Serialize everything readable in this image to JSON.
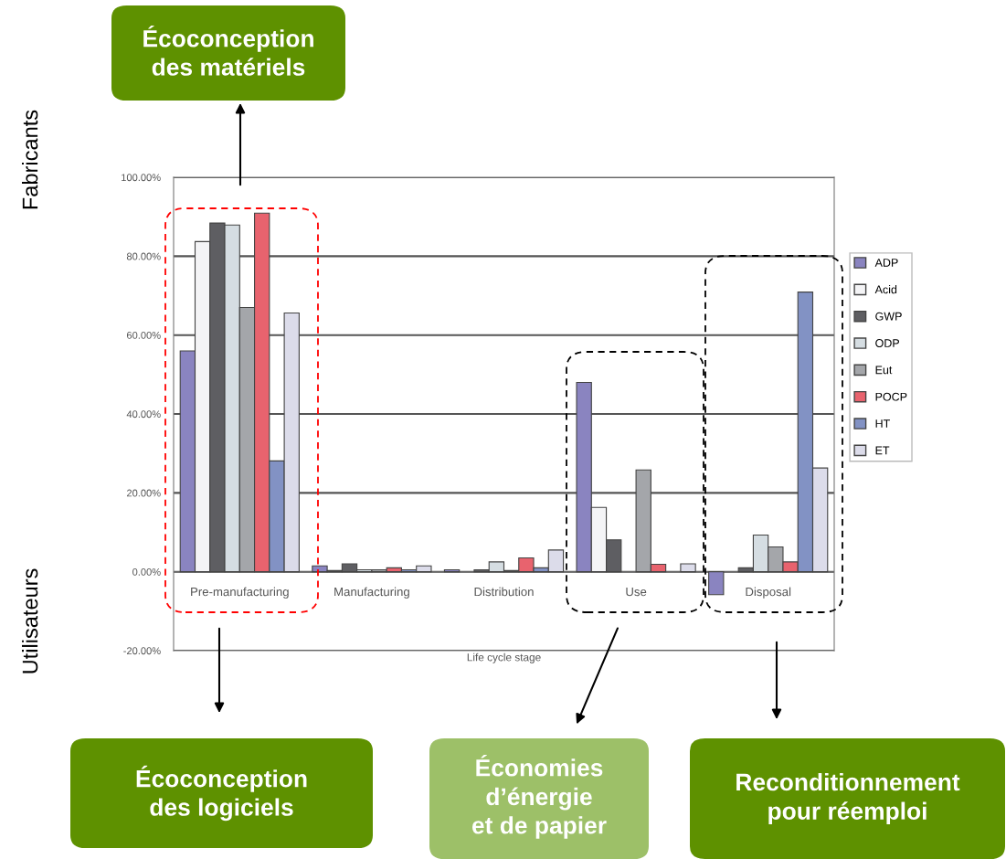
{
  "chart_data": {
    "type": "bar",
    "xlabel": "Life cycle stage",
    "categories": [
      "Pre-manufacturing",
      "Manufacturing",
      "Distribution",
      "Use",
      "Disposal"
    ],
    "series": [
      {
        "name": "ADP",
        "color": "#8a84c0",
        "values": [
          56,
          1.5,
          0.5,
          48,
          -5.8
        ]
      },
      {
        "name": "Acid",
        "color": "#f4f4f6",
        "values": [
          83.7,
          0.3,
          null,
          16.3,
          null
        ]
      },
      {
        "name": "GWP",
        "color": "#5e5e62",
        "values": [
          88.4,
          2,
          0.5,
          8.1,
          1
        ]
      },
      {
        "name": "ODP",
        "color": "#d5dde2",
        "values": [
          87.9,
          0.5,
          2.5,
          null,
          9.3
        ]
      },
      {
        "name": "Eut",
        "color": "#a4a6aa",
        "values": [
          67,
          0.5,
          0.3,
          25.8,
          6.3
        ]
      },
      {
        "name": "POCP",
        "color": "#e8636e",
        "values": [
          90.9,
          1,
          3.5,
          1.9,
          2.5
        ]
      },
      {
        "name": "HT",
        "color": "#8292c4",
        "values": [
          28.1,
          0.5,
          1,
          null,
          70.9
        ]
      },
      {
        "name": "ET",
        "color": "#dcdcea",
        "values": [
          65.6,
          1.5,
          5.5,
          2,
          26.3
        ]
      }
    ],
    "ylim": [
      -20,
      100
    ],
    "yticks": [
      {
        "value": -20,
        "label": "-20.00%"
      },
      {
        "value": 0,
        "label": "0.00%"
      },
      {
        "value": 20,
        "label": "20.00%"
      },
      {
        "value": 40,
        "label": "40.00%"
      },
      {
        "value": 60,
        "label": "60.00%"
      },
      {
        "value": 80,
        "label": "80.00%"
      },
      {
        "value": 100,
        "label": "100.00%"
      }
    ],
    "grid": "y",
    "legend": "right",
    "annotations": [
      "Écoconception\ndes matériels",
      "Écoconception\ndes logiciels",
      "Économies\nd’énergie\net de papier",
      "Reconditionnement\npour réemploi",
      "Fabricants",
      "Utilisateurs"
    ]
  }
}
